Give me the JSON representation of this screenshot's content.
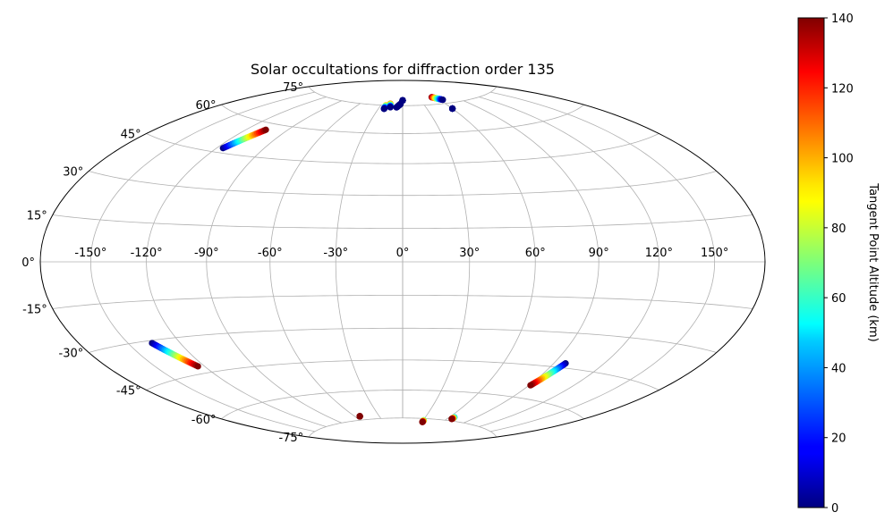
{
  "chart_data": {
    "type": "scatter",
    "projection": "hammer",
    "title": "Solar occultations for diffraction order 135",
    "grid": true,
    "longitude_ticks": [
      -150,
      -120,
      -90,
      -60,
      -30,
      0,
      30,
      60,
      90,
      120,
      150
    ],
    "longitude_tick_labels": [
      "-150°",
      "-120°",
      "-90°",
      "-60°",
      "-30°",
      "0°",
      "30°",
      "60°",
      "90°",
      "120°",
      "150°"
    ],
    "latitude_ticks": [
      -75,
      -60,
      -45,
      -30,
      -15,
      0,
      15,
      30,
      45,
      60,
      75
    ],
    "latitude_tick_labels": [
      "-75°",
      "-60°",
      "-45°",
      "-30°",
      "-15°",
      "0°",
      "15°",
      "30°",
      "45°",
      "60°",
      "75°"
    ],
    "colorbar": {
      "label": "Tangent Point Altitude (km)",
      "range": [
        0,
        140
      ],
      "ticks": [
        0,
        20,
        40,
        60,
        80,
        100,
        120,
        140
      ],
      "tick_labels": [
        "0",
        "20",
        "40",
        "60",
        "80",
        "100",
        "120",
        "140"
      ],
      "colormap": "jet",
      "placement": "right"
    },
    "occultations": [
      {
        "start": [
          -116,
          47
        ],
        "end": [
          -106,
          57
        ],
        "alt_start": 0,
        "alt_end": 140
      },
      {
        "start": [
          -136,
          -31
        ],
        "end": [
          -124,
          -42
        ],
        "alt_start": 0,
        "alt_end": 140
      },
      {
        "start": [
          -23,
          75
        ],
        "end": [
          -23,
          73
        ],
        "alt_start": 100,
        "alt_end": 0
      },
      {
        "start": [
          -18,
          76
        ],
        "end": [
          -16,
          74
        ],
        "alt_start": 110,
        "alt_end": 0
      },
      {
        "start": [
          -8,
          74
        ],
        "end": [
          -3,
          76
        ],
        "alt_start": 0,
        "alt_end": 0
      },
      {
        "start": [
          0,
          78
        ],
        "end": [
          0,
          78
        ],
        "alt_start": 0,
        "alt_end": 0
      },
      {
        "start": [
          54,
          79
        ],
        "end": [
          65,
          77
        ],
        "alt_start": 140,
        "alt_end": 0
      },
      {
        "start": [
          60,
          72
        ],
        "end": [
          60,
          72
        ],
        "alt_start": 0,
        "alt_end": 0
      },
      {
        "start": [
          -54,
          -73
        ],
        "end": [
          -54,
          -73
        ],
        "alt_start": 140,
        "alt_end": 140
      },
      {
        "start": [
          31,
          -76
        ],
        "end": [
          31,
          -77
        ],
        "alt_start": 60,
        "alt_end": 140
      },
      {
        "start": [
          66,
          -73
        ],
        "end": [
          66,
          -74
        ],
        "alt_start": 40,
        "alt_end": 140
      },
      {
        "start": [
          97,
          -43
        ],
        "end": [
          91,
          -54
        ],
        "alt_start": 0,
        "alt_end": 140
      }
    ]
  }
}
